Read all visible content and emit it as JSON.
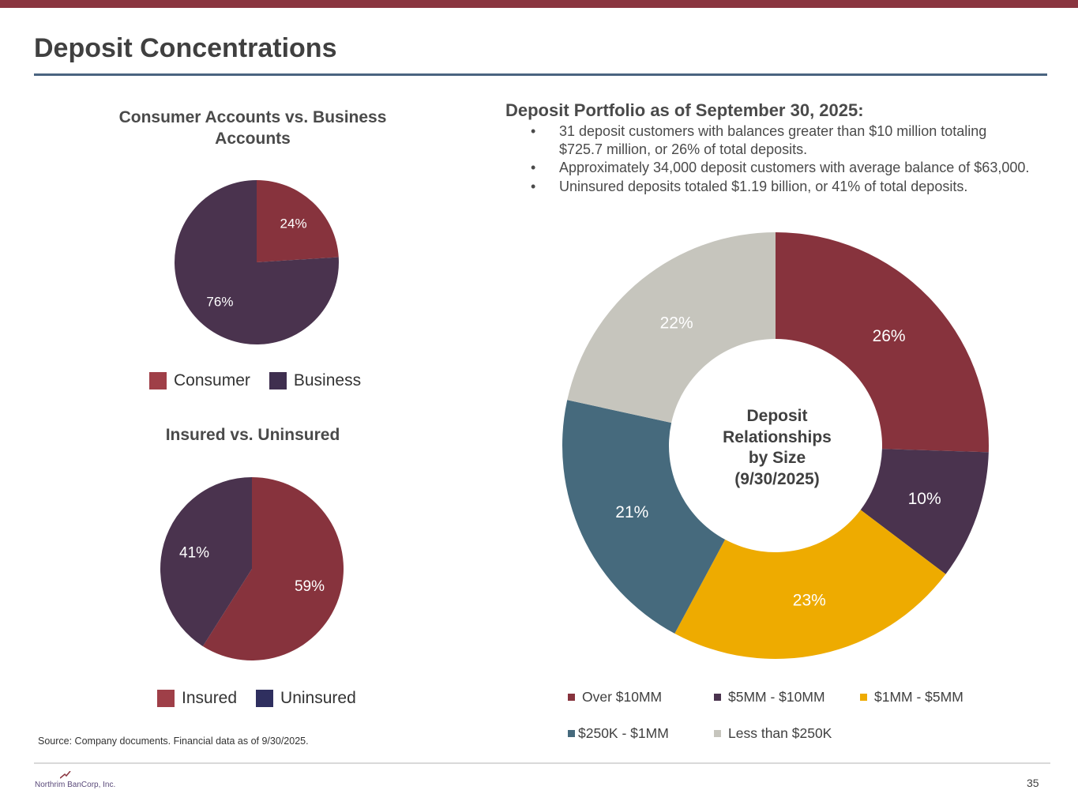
{
  "header": {
    "title": "Deposit Concentrations"
  },
  "portfolio": {
    "title": "Deposit Portfolio as of September 30, 2025:",
    "bullet_char": "•",
    "bullets": [
      "31 deposit customers with balances greater than $10 million totaling $725.7 million, or 26% of total deposits.",
      "Approximately 34,000 deposit customers with average balance of $63,000.",
      "Uninsured deposits totaled $1.19 billion, or 41% of total deposits."
    ]
  },
  "chart_data": [
    {
      "id": "consumer_business",
      "type": "pie",
      "title": "Consumer Accounts vs. Business Accounts",
      "title_lines": [
        "Consumer Accounts vs. Business",
        "Accounts"
      ],
      "categories": [
        "Consumer",
        "Business"
      ],
      "values": [
        24,
        76
      ],
      "labels": [
        "24%",
        "76%"
      ],
      "colors": [
        "#87333d",
        "#4a334e"
      ],
      "legend": "bottom"
    },
    {
      "id": "insured_uninsured",
      "type": "pie",
      "title": "Insured vs. Uninsured",
      "categories": [
        "Insured",
        "Uninsured"
      ],
      "values": [
        59,
        41
      ],
      "labels": [
        "59%",
        "41%"
      ],
      "colors": [
        "#87333d",
        "#4a334e"
      ],
      "legend_colors": [
        "#9f3f48",
        "#2f2f5f"
      ],
      "legend": "bottom"
    },
    {
      "id": "deposit_size",
      "type": "pie",
      "subtype": "donut",
      "center_text": [
        "Deposit",
        "Relationships",
        "by Size",
        "(9/30/2025)"
      ],
      "categories": [
        "Over $10MM",
        "$5MM - $10MM",
        "$1MM - $5MM",
        "$250K - $1MM",
        "Less than $250K"
      ],
      "values": [
        26,
        10,
        23,
        21,
        22
      ],
      "labels": [
        "26%",
        "10%",
        "23%",
        "21%",
        "22%"
      ],
      "colors": [
        "#87333d",
        "#4a334e",
        "#eeab00",
        "#466a7d",
        "#c6c5bd"
      ],
      "legend": "bottom"
    }
  ],
  "footer": {
    "source": "Source: Company documents. Financial data as of 9/30/2025.",
    "logo_text": "Northrim BanCorp, Inc.",
    "page_number": "35"
  }
}
